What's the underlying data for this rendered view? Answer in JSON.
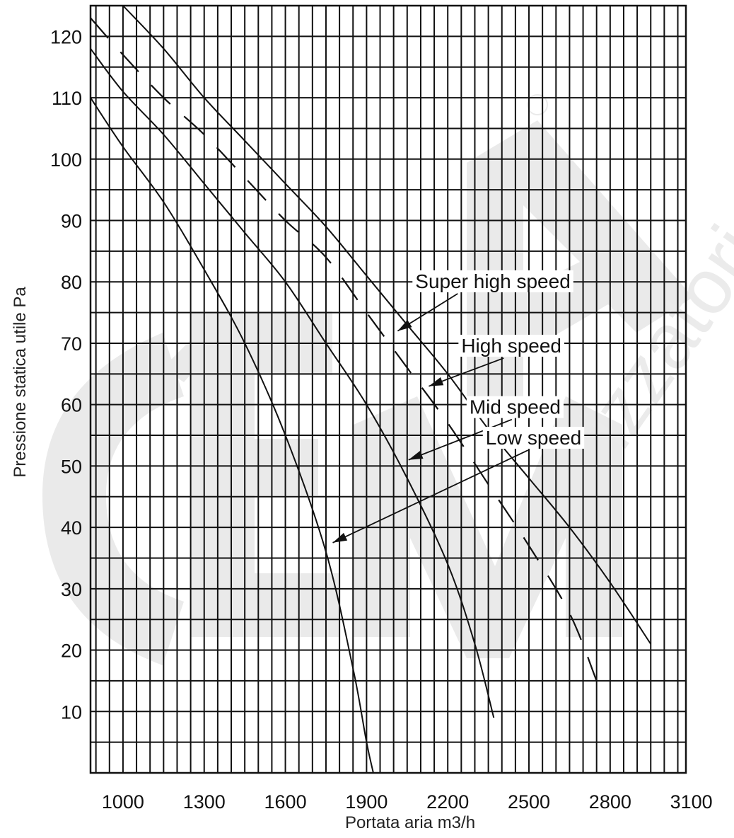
{
  "chart_data": {
    "type": "line",
    "title": "",
    "xlabel": "Portata aria m3/h",
    "ylabel": "Pressione statica utile Pa",
    "xlim": [
      880,
      3080
    ],
    "ylim": [
      0,
      125
    ],
    "x_ticks": [
      1000,
      1300,
      1600,
      1900,
      2200,
      2500,
      2800,
      3100
    ],
    "y_ticks": [
      10,
      20,
      30,
      40,
      50,
      60,
      70,
      80,
      90,
      100,
      110,
      120
    ],
    "grid": true,
    "watermark": "CIEMMA distributori d'aria",
    "series": [
      {
        "name": "Super high speed",
        "style": "solid",
        "points": [
          [
            1000,
            125
          ],
          [
            1150,
            118
          ],
          [
            1300,
            110
          ],
          [
            1450,
            103
          ],
          [
            1600,
            96
          ],
          [
            1750,
            89
          ],
          [
            1900,
            81
          ],
          [
            2050,
            73
          ],
          [
            2200,
            65
          ],
          [
            2350,
            56
          ],
          [
            2500,
            48
          ],
          [
            2650,
            40
          ],
          [
            2800,
            31
          ],
          [
            2950,
            21
          ]
        ]
      },
      {
        "name": "High speed",
        "style": "dashed",
        "points": [
          [
            880,
            123
          ],
          [
            1000,
            117
          ],
          [
            1150,
            110
          ],
          [
            1300,
            104
          ],
          [
            1450,
            97
          ],
          [
            1600,
            90
          ],
          [
            1750,
            84
          ],
          [
            1900,
            75
          ],
          [
            2050,
            66
          ],
          [
            2200,
            57
          ],
          [
            2350,
            47
          ],
          [
            2500,
            37
          ],
          [
            2650,
            26
          ],
          [
            2750,
            15
          ]
        ]
      },
      {
        "name": "Mid speed",
        "style": "solid",
        "points": [
          [
            880,
            118
          ],
          [
            1000,
            111
          ],
          [
            1150,
            104
          ],
          [
            1300,
            96
          ],
          [
            1450,
            88
          ],
          [
            1600,
            80
          ],
          [
            1750,
            70
          ],
          [
            1900,
            60
          ],
          [
            2050,
            48
          ],
          [
            2200,
            34
          ],
          [
            2300,
            21
          ],
          [
            2370,
            9
          ]
        ]
      },
      {
        "name": "Low speed",
        "style": "solid",
        "points": [
          [
            880,
            110
          ],
          [
            1000,
            102
          ],
          [
            1150,
            93
          ],
          [
            1300,
            82
          ],
          [
            1450,
            70
          ],
          [
            1600,
            55
          ],
          [
            1750,
            36
          ],
          [
            1850,
            17
          ],
          [
            1900,
            5
          ],
          [
            1925,
            0
          ]
        ]
      }
    ],
    "labels": [
      {
        "text": "Super high speed",
        "series": "Super high speed",
        "pos": [
          2080,
          79
        ],
        "arrow_to": [
          2015,
          72
        ]
      },
      {
        "text": "High speed",
        "series": "High speed",
        "pos": [
          2250,
          68.5
        ],
        "arrow_to": [
          2130,
          63
        ]
      },
      {
        "text": "Mid speed",
        "series": "Mid speed",
        "pos": [
          2280,
          58.5
        ],
        "arrow_to": [
          2055,
          51
        ]
      },
      {
        "text": "Low speed",
        "series": "Low speed",
        "pos": [
          2340,
          53.5
        ],
        "arrow_to": [
          1775,
          37.5
        ]
      }
    ]
  }
}
